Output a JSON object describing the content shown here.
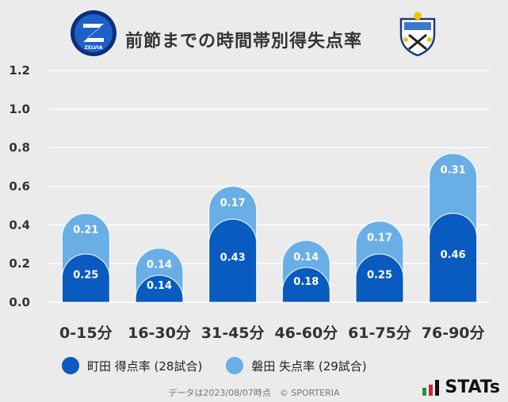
{
  "header": {
    "title": "前節までの時間帯別得失点率",
    "left_logo": "zelvia-emblem",
    "left_logo_text": "ZELVIA",
    "right_logo": "jubilo-emblem"
  },
  "colors": {
    "machida": "#0a5bbf",
    "iwata": "#6aaee6",
    "background": "#ebebeb",
    "gridline": "#ffffff"
  },
  "chart_data": {
    "type": "bar",
    "stacked": true,
    "categories": [
      "0-15分",
      "16-30分",
      "31-45分",
      "46-60分",
      "61-75分",
      "76-90分"
    ],
    "series": [
      {
        "name": "町田 得点率 (28試合)",
        "values": [
          0.25,
          0.14,
          0.43,
          0.18,
          0.25,
          0.46
        ]
      },
      {
        "name": "磐田 失点率 (29試合)",
        "values": [
          0.21,
          0.14,
          0.17,
          0.14,
          0.17,
          0.31
        ]
      }
    ],
    "yticks": [
      "0.0",
      "0.2",
      "0.4",
      "0.6",
      "0.8",
      "1.0",
      "1.2"
    ],
    "ylim": [
      0,
      1.2
    ],
    "grid": true,
    "legend_position": "bottom-left"
  },
  "footer": {
    "note": "データは2023/08/07時点　© SPORTERIA",
    "brand": "STATs"
  }
}
